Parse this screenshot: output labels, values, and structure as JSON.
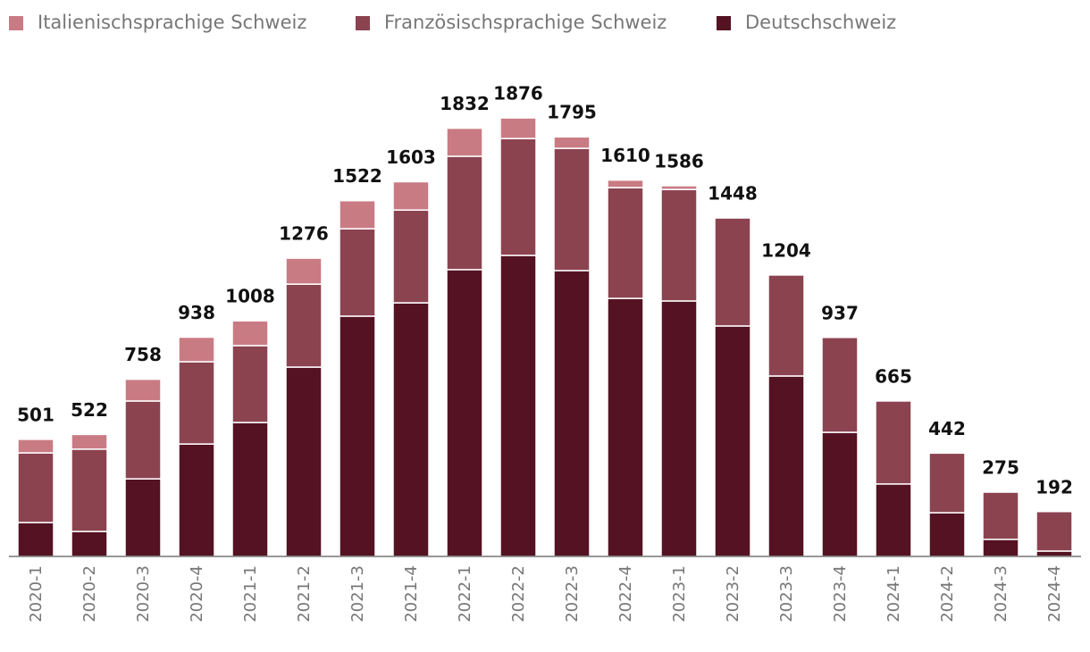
{
  "chart_data": {
    "type": "stacked_bar",
    "categories": [
      "2020-1",
      "2020-2",
      "2020-3",
      "2020-4",
      "2021-1",
      "2021-2",
      "2021-3",
      "2021-4",
      "2022-1",
      "2022-2",
      "2022-3",
      "2022-4",
      "2023-1",
      "2023-2",
      "2023-3",
      "2023-4",
      "2024-1",
      "2024-2",
      "2024-3",
      "2024-4"
    ],
    "series": [
      {
        "name": "Italienischsprachige Schweiz",
        "color": "#c97b84",
        "values": [
          58,
          63,
          93,
          105,
          106,
          111,
          120,
          121,
          120,
          88,
          49,
          32,
          16,
          0,
          0,
          0,
          0,
          0,
          0,
          0
        ]
      },
      {
        "name": "Französischsprachige Schweiz",
        "color": "#8b4350",
        "values": [
          298,
          352,
          333,
          352,
          329,
          355,
          374,
          397,
          485,
          500,
          523,
          474,
          477,
          462,
          432,
          406,
          355,
          255,
          202,
          169
        ]
      },
      {
        "name": "Deutschschweiz",
        "color": "#541222",
        "values": [
          145,
          107,
          332,
          481,
          573,
          810,
          1028,
          1085,
          1227,
          1288,
          1223,
          1104,
          1093,
          986,
          772,
          531,
          310,
          187,
          73,
          23
        ]
      }
    ],
    "totals": [
      501,
      522,
      758,
      938,
      1008,
      1276,
      1522,
      1603,
      1832,
      1876,
      1795,
      1610,
      1586,
      1448,
      1204,
      937,
      665,
      442,
      275,
      192
    ],
    "ylim": [
      0,
      2000
    ],
    "legend": "top-left"
  }
}
